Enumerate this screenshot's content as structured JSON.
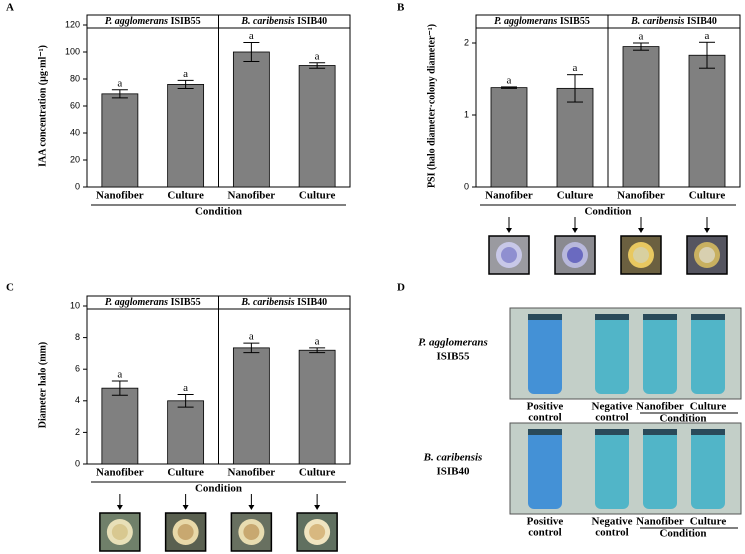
{
  "chart_data": [
    {
      "type": "bar",
      "panel_label": "A",
      "color": "#808080",
      "groups": [
        {
          "species": "P. agglomerans",
          "strain": "ISIB55"
        },
        {
          "species": "B. caribensis",
          "strain": "ISIB40"
        }
      ],
      "categories": [
        "Nanofiber",
        "Culture",
        "Nanofiber",
        "Culture"
      ],
      "values": [
        69,
        76,
        100,
        90
      ],
      "errors": [
        3,
        3,
        7,
        2
      ],
      "annotations": [
        "a",
        "a",
        "a",
        "a"
      ],
      "ylabel": "IAA concentration (µg·ml⁻¹)",
      "xlabel": "Condition",
      "ylim": [
        0,
        120
      ],
      "yticks": [
        0,
        20,
        40,
        60,
        80,
        100,
        120
      ]
    },
    {
      "type": "bar",
      "panel_label": "B",
      "color": "#808080",
      "groups": [
        {
          "species": "P. agglomerans",
          "strain": "ISIB55"
        },
        {
          "species": "B. caribensis",
          "strain": "ISIB40"
        }
      ],
      "categories": [
        "Nanofiber",
        "Culture",
        "Nanofiber",
        "Culture"
      ],
      "values": [
        1.38,
        1.37,
        1.95,
        1.83
      ],
      "errors": [
        0.01,
        0.19,
        0.05,
        0.18
      ],
      "annotations": [
        "a",
        "a",
        "a",
        "a"
      ],
      "ylabel": "PSI (halo diameter·colony diameter⁻¹)",
      "xlabel": "Condition",
      "ylim": [
        0,
        2.25
      ],
      "yticks": [
        0,
        1,
        2
      ]
    },
    {
      "type": "bar",
      "panel_label": "C",
      "color": "#808080",
      "groups": [
        {
          "species": "P. agglomerans",
          "strain": "ISIB55"
        },
        {
          "species": "B. caribensis",
          "strain": "ISIB40"
        }
      ],
      "categories": [
        "Nanofiber",
        "Culture",
        "Nanofiber",
        "Culture"
      ],
      "values": [
        4.8,
        4.0,
        7.35,
        7.2
      ],
      "errors": [
        0.45,
        0.4,
        0.3,
        0.15
      ],
      "annotations": [
        "a",
        "a",
        "a",
        "a"
      ],
      "ylabel": "Diameter halo  (mm)",
      "xlabel": "Condition",
      "ylim": [
        0,
        10
      ],
      "yticks": [
        0,
        2,
        4,
        6,
        8,
        10
      ]
    }
  ],
  "panel_d": {
    "label": "D",
    "rows": [
      {
        "species": "P. agglomerans",
        "strain": "ISIB55",
        "columns": [
          [
            "Positive",
            "control"
          ],
          [
            "Negative",
            "control"
          ],
          [
            "Nanofiber"
          ],
          [
            "Culture"
          ]
        ],
        "xlabel": "Condition"
      },
      {
        "species": "B. caribensis",
        "strain": "ISIB40",
        "columns": [
          [
            "Positive",
            "control"
          ],
          [
            "Negative",
            "control"
          ],
          [
            "Nanofiber"
          ],
          [
            "Culture"
          ]
        ],
        "xlabel": "Condition"
      }
    ]
  }
}
